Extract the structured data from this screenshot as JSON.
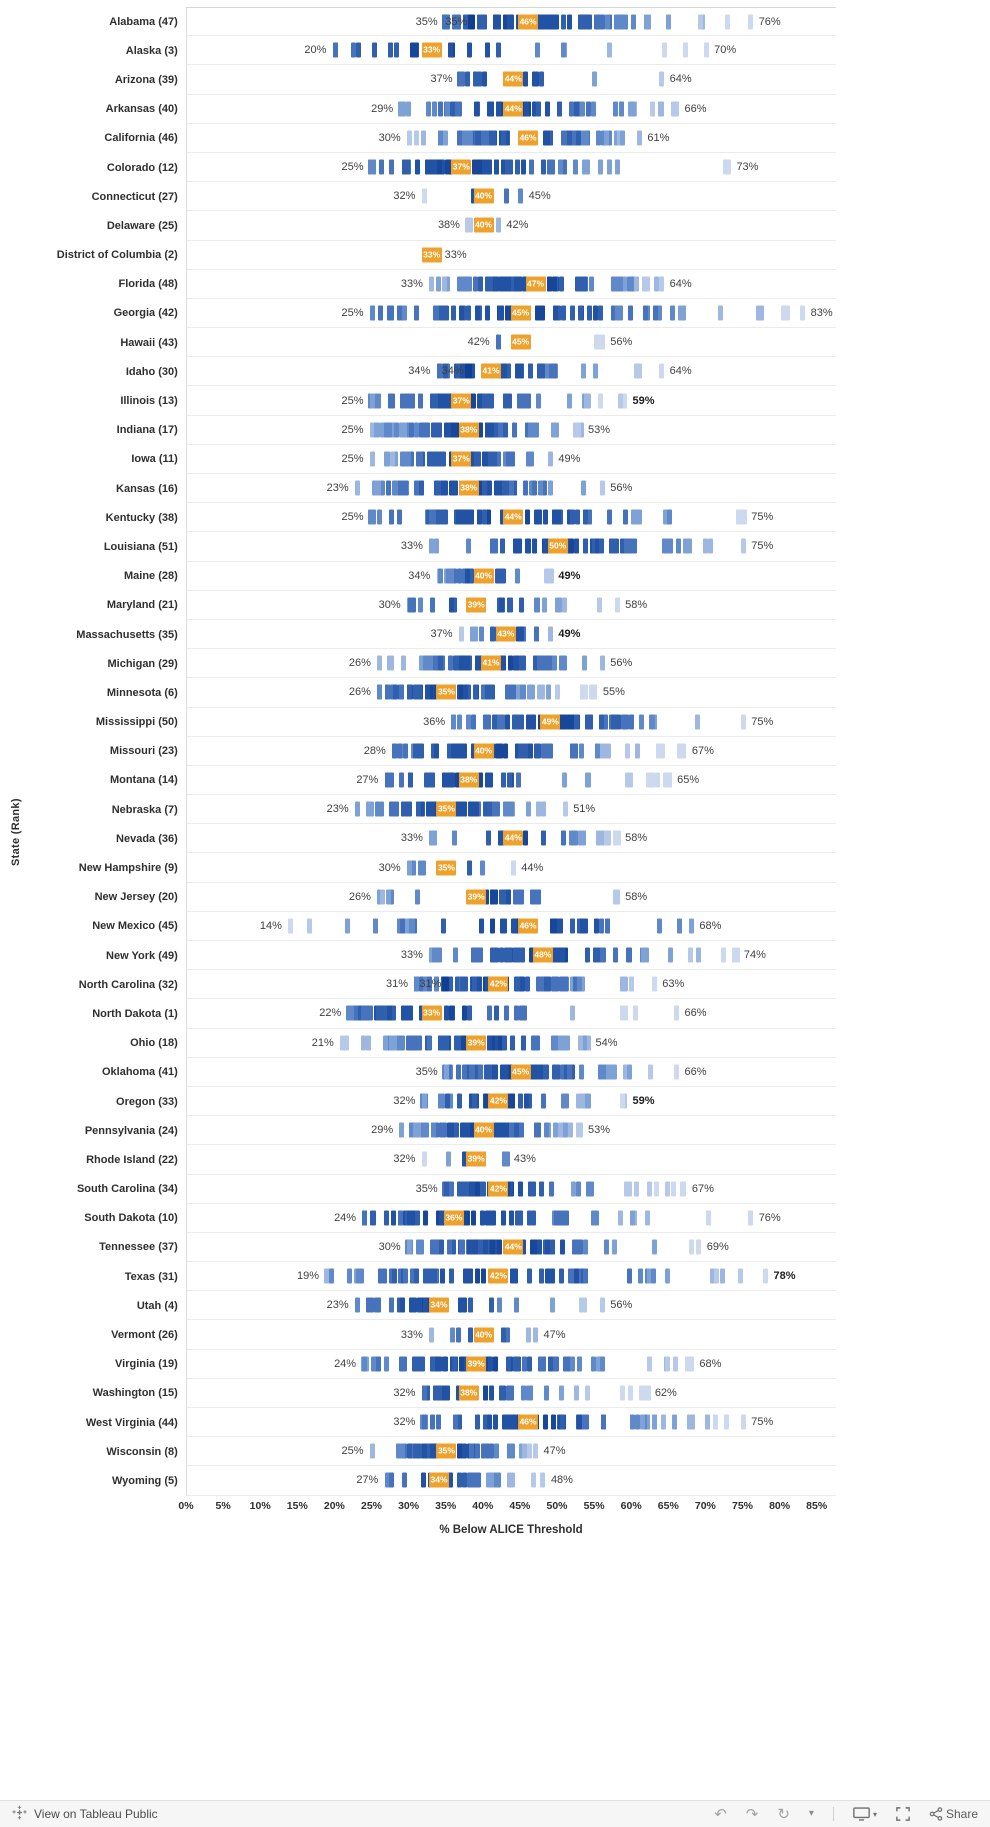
{
  "y_axis_title": "State  (Rank)",
  "x_axis_title": "% Below ALICE Threshold",
  "x_ticks": [
    "0%",
    "5%",
    "10%",
    "15%",
    "20%",
    "25%",
    "30%",
    "35%",
    "40%",
    "45%",
    "50%",
    "55%",
    "60%",
    "65%",
    "70%",
    "75%",
    "80%",
    "85%"
  ],
  "colors": {
    "accent_orange": "#eda22d",
    "dark_navy": "#0f3f93",
    "mark_blues": [
      "#cdd9ee",
      "#b7c9e8",
      "#9db7e0",
      "#7fa2d6",
      "#6089c9",
      "#4673bb",
      "#305fae",
      "#2152a3",
      "#18479a"
    ]
  },
  "footer": {
    "view_label": "View on Tableau Public",
    "share_label": "Share",
    "glyphs": {
      "undo": "↶",
      "redo": "↷",
      "reset": "↻",
      "caret": "▾"
    }
  },
  "chart_data": {
    "type": "scatter",
    "subtype": "dot-strip distribution per state; blue ticks = county values, orange chip = state value (labeled), outer labels = min and max",
    "title": "",
    "xlabel": "% Below ALICE Threshold",
    "ylabel": "State  (Rank)",
    "x_range": [
      0,
      85
    ],
    "grid": false,
    "states": [
      {
        "label": "Alabama (47)",
        "min": 35,
        "value": 46,
        "max": 76,
        "n_marks_est": 55,
        "extra": {
          "text": "35%",
          "pct": 37
        }
      },
      {
        "label": "Alaska (3)",
        "min": 20,
        "value": 33,
        "max": 70,
        "n_marks_est": 24
      },
      {
        "label": "Arizona (39)",
        "min": 37,
        "value": 44,
        "max": 64,
        "n_marks_est": 15
      },
      {
        "label": "Arkansas (40)",
        "min": 29,
        "value": 44,
        "max": 66,
        "n_marks_est": 55
      },
      {
        "label": "California (46)",
        "min": 30,
        "value": 46,
        "max": 61,
        "n_marks_est": 50
      },
      {
        "label": "Colorado (12)",
        "min": 25,
        "value": 37,
        "max": 73,
        "n_marks_est": 50
      },
      {
        "label": "Connecticut (27)",
        "min": 32,
        "value": 40,
        "max": 45,
        "n_marks_est": 8
      },
      {
        "label": "Delaware (25)",
        "min": 38,
        "value": 40,
        "max": 42,
        "n_marks_est": 3
      },
      {
        "label": "District of Columbia (2)",
        "min": 33,
        "value": 33,
        "max": 33,
        "n_marks_est": 1
      },
      {
        "label": "Florida (48)",
        "min": 33,
        "value": 47,
        "max": 64,
        "n_marks_est": 50
      },
      {
        "label": "Georgia (42)",
        "min": 25,
        "value": 45,
        "max": 83,
        "n_marks_est": 55
      },
      {
        "label": "Hawaii (43)",
        "min": 42,
        "value": 45,
        "max": 56,
        "n_marks_est": 4
      },
      {
        "label": "Idaho (30)",
        "min": 34,
        "value": 41,
        "max": 64,
        "n_marks_est": 40,
        "extra": {
          "text": "34%",
          "pct": 36.5
        }
      },
      {
        "label": "Illinois (13)",
        "min": 25,
        "value": 37,
        "max": 59,
        "n_marks_est": 55,
        "max_bold": true
      },
      {
        "label": "Indiana (17)",
        "min": 25,
        "value": 38,
        "max": 53,
        "n_marks_est": 55
      },
      {
        "label": "Iowa (11)",
        "min": 25,
        "value": 37,
        "max": 49,
        "n_marks_est": 55
      },
      {
        "label": "Kansas (16)",
        "min": 23,
        "value": 38,
        "max": 56,
        "n_marks_est": 55
      },
      {
        "label": "Kentucky (38)",
        "min": 25,
        "value": 44,
        "max": 75,
        "n_marks_est": 55
      },
      {
        "label": "Louisiana (51)",
        "min": 33,
        "value": 50,
        "max": 75,
        "n_marks_est": 50
      },
      {
        "label": "Maine (28)",
        "min": 34,
        "value": 40,
        "max": 49,
        "n_marks_est": 16,
        "max_bold": true
      },
      {
        "label": "Maryland (21)",
        "min": 30,
        "value": 39,
        "max": 58,
        "n_marks_est": 24
      },
      {
        "label": "Massachusetts (35)",
        "min": 37,
        "value": 43,
        "max": 49,
        "n_marks_est": 14,
        "max_bold": true
      },
      {
        "label": "Michigan (29)",
        "min": 26,
        "value": 41,
        "max": 56,
        "n_marks_est": 55
      },
      {
        "label": "Minnesota (6)",
        "min": 26,
        "value": 35,
        "max": 55,
        "n_marks_est": 55
      },
      {
        "label": "Mississippi (50)",
        "min": 36,
        "value": 49,
        "max": 75,
        "n_marks_est": 55
      },
      {
        "label": "Missouri (23)",
        "min": 28,
        "value": 40,
        "max": 67,
        "n_marks_est": 55
      },
      {
        "label": "Montana (14)",
        "min": 27,
        "value": 38,
        "max": 65,
        "n_marks_est": 45
      },
      {
        "label": "Nebraska (7)",
        "min": 23,
        "value": 35,
        "max": 51,
        "n_marks_est": 55
      },
      {
        "label": "Nevada (36)",
        "min": 33,
        "value": 44,
        "max": 58,
        "n_marks_est": 17
      },
      {
        "label": "New Hampshire (9)",
        "min": 30,
        "value": 35,
        "max": 44,
        "n_marks_est": 10
      },
      {
        "label": "New Jersey (20)",
        "min": 26,
        "value": 39,
        "max": 58,
        "n_marks_est": 21
      },
      {
        "label": "New Mexico (45)",
        "min": 14,
        "value": 46,
        "max": 68,
        "n_marks_est": 33
      },
      {
        "label": "New York (49)",
        "min": 33,
        "value": 48,
        "max": 74,
        "n_marks_est": 50
      },
      {
        "label": "North Carolina (32)",
        "min": 31,
        "value": 42,
        "max": 63,
        "n_marks_est": 55,
        "extra": {
          "text": "31%",
          "pct": 33.5
        }
      },
      {
        "label": "North Dakota (1)",
        "min": 22,
        "value": 33,
        "max": 66,
        "n_marks_est": 45
      },
      {
        "label": "Ohio (18)",
        "min": 21,
        "value": 39,
        "max": 54,
        "n_marks_est": 55
      },
      {
        "label": "Oklahoma (41)",
        "min": 35,
        "value": 45,
        "max": 66,
        "n_marks_est": 55
      },
      {
        "label": "Oregon (33)",
        "min": 32,
        "value": 42,
        "max": 59,
        "n_marks_est": 36,
        "max_bold": true
      },
      {
        "label": "Pennsylvania (24)",
        "min": 29,
        "value": 40,
        "max": 53,
        "n_marks_est": 55
      },
      {
        "label": "Rhode Island (22)",
        "min": 32,
        "value": 39,
        "max": 43,
        "n_marks_est": 5
      },
      {
        "label": "South Carolina (34)",
        "min": 35,
        "value": 42,
        "max": 67,
        "n_marks_est": 46
      },
      {
        "label": "South Dakota (10)",
        "min": 24,
        "value": 36,
        "max": 76,
        "n_marks_est": 50
      },
      {
        "label": "Tennessee (37)",
        "min": 30,
        "value": 44,
        "max": 69,
        "n_marks_est": 55
      },
      {
        "label": "Texas (31)",
        "min": 19,
        "value": 42,
        "max": 78,
        "n_marks_est": 55,
        "max_bold": true
      },
      {
        "label": "Utah (4)",
        "min": 23,
        "value": 34,
        "max": 56,
        "n_marks_est": 29
      },
      {
        "label": "Vermont (26)",
        "min": 33,
        "value": 40,
        "max": 47,
        "n_marks_est": 14
      },
      {
        "label": "Virginia (19)",
        "min": 24,
        "value": 39,
        "max": 68,
        "n_marks_est": 55
      },
      {
        "label": "Washington (15)",
        "min": 32,
        "value": 38,
        "max": 62,
        "n_marks_est": 39
      },
      {
        "label": "West Virginia (44)",
        "min": 32,
        "value": 46,
        "max": 75,
        "n_marks_est": 50
      },
      {
        "label": "Wisconsin (8)",
        "min": 25,
        "value": 35,
        "max": 47,
        "n_marks_est": 55
      },
      {
        "label": "Wyoming (5)",
        "min": 27,
        "value": 34,
        "max": 48,
        "n_marks_est": 23
      }
    ]
  }
}
